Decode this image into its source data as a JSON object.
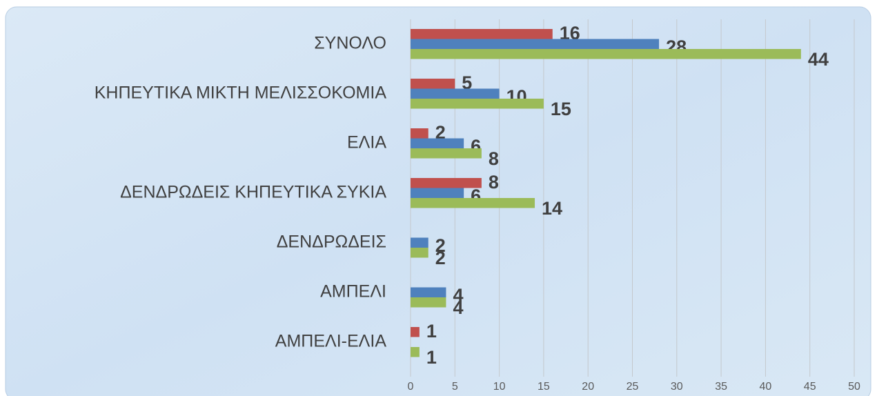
{
  "chart_data": {
    "type": "bar",
    "orientation": "horizontal",
    "categories": [
      "ΣΥΝΟΛΟ",
      "ΚΗΠΕΥΤΙΚΑ ΜΙΚΤΗ ΜΕΛΙΣΣΟΚΟΜΙΑ",
      "ΕΛΙΑ",
      "ΔΕΝΔΡΩΔΕΙΣ ΚΗΠΕΥΤΙΚΑ ΣΥΚΙΑ",
      "ΔΕΝΔΡΩΔΕΙΣ",
      "ΑΜΠΕΛΙ",
      "ΑΜΠΕΛΙ-ΕΛΙΑ"
    ],
    "series": [
      {
        "color": "#c0504d",
        "values": [
          16,
          5,
          2,
          8,
          null,
          null,
          1
        ]
      },
      {
        "color": "#4f81bd",
        "values": [
          28,
          10,
          6,
          6,
          2,
          4,
          null
        ]
      },
      {
        "color": "#9bbb59",
        "values": [
          44,
          15,
          8,
          14,
          2,
          4,
          1
        ]
      }
    ],
    "xlim": [
      0,
      50
    ],
    "xticks": [
      0,
      5,
      10,
      15,
      20,
      25,
      30,
      35,
      40,
      45,
      50
    ],
    "grid": true
  }
}
